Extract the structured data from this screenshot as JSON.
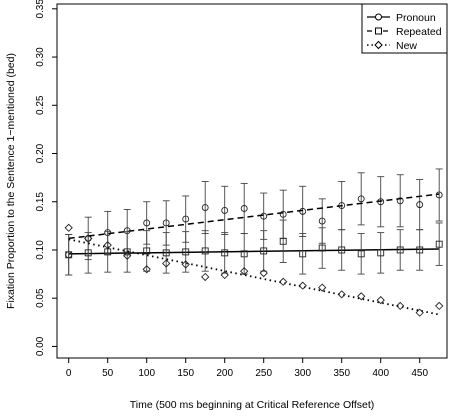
{
  "chart_data": {
    "type": "line",
    "title": "",
    "xlabel": "Time (500 ms beginning at Critical Reference Offset)",
    "ylabel": "Fixation Proportion to the Sentence 1−mentioned (bed)",
    "xlim": [
      -15,
      485
    ],
    "ylim": [
      -0.012,
      0.355
    ],
    "x_ticks": [
      "0",
      "50",
      "100",
      "150",
      "200",
      "250",
      "300",
      "350",
      "400",
      "450"
    ],
    "y_ticks": [
      "0.00",
      "0.05",
      "0.10",
      "0.15",
      "0.20",
      "0.25",
      "0.30",
      "0.35"
    ],
    "x": [
      0,
      25,
      50,
      75,
      100,
      125,
      150,
      175,
      200,
      225,
      250,
      275,
      300,
      325,
      350,
      375,
      400,
      425,
      450,
      475
    ],
    "legend_position": "top-right",
    "series": [
      {
        "name": "Pronoun",
        "marker": "circle",
        "line_style": "solid",
        "fit": [
          0.096,
          0.101
        ],
        "values": [
          0.095,
          0.112,
          0.118,
          0.12,
          0.128,
          0.128,
          0.132,
          0.144,
          0.141,
          0.143,
          0.135,
          0.137,
          0.14,
          0.13,
          0.146,
          0.153,
          0.15,
          0.151,
          0.147,
          0.157
        ],
        "errors": [
          0.021,
          0.022,
          0.022,
          0.022,
          0.022,
          0.023,
          0.024,
          0.027,
          0.025,
          0.026,
          0.024,
          0.025,
          0.026,
          0.023,
          0.025,
          0.027,
          0.026,
          0.027,
          0.026,
          0.027
        ]
      },
      {
        "name": "Repeated",
        "marker": "square",
        "line_style": "dashed",
        "fit": [
          0.112,
          0.158
        ],
        "values": [
          0.095,
          0.097,
          0.098,
          0.098,
          0.099,
          0.097,
          0.098,
          0.099,
          0.097,
          0.096,
          0.099,
          0.109,
          0.096,
          0.102,
          0.1,
          0.096,
          0.097,
          0.1,
          0.1,
          0.106
        ],
        "errors": [
          0.021,
          0.021,
          0.021,
          0.021,
          0.021,
          0.021,
          0.021,
          0.021,
          0.021,
          0.021,
          0.021,
          0.022,
          0.021,
          0.021,
          0.021,
          0.021,
          0.021,
          0.021,
          0.021,
          0.022
        ]
      },
      {
        "name": "New",
        "marker": "diamond",
        "line_style": "dotted",
        "fit": [
          0.111,
          0.033
        ],
        "values": [
          0.123,
          0.112,
          0.105,
          0.094,
          0.08,
          0.086,
          0.085,
          0.072,
          0.074,
          0.078,
          0.076,
          0.067,
          0.063,
          0.061,
          0.054,
          0.052,
          0.048,
          0.042,
          0.035,
          0.042
        ]
      }
    ]
  }
}
